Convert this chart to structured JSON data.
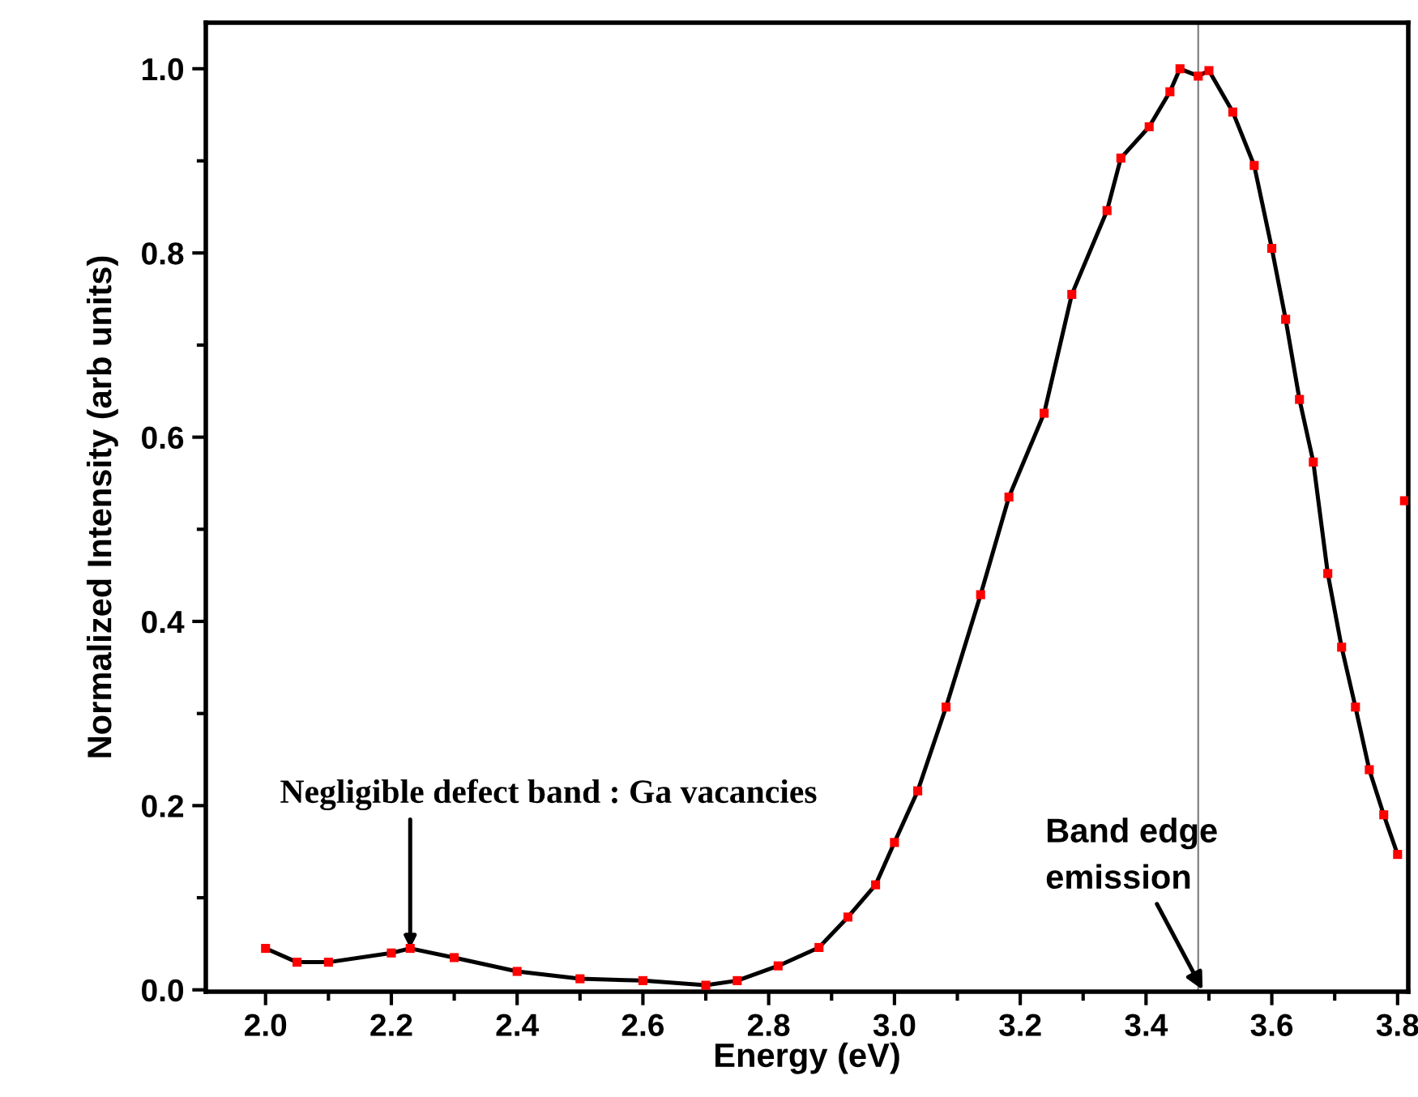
{
  "chart_data": {
    "type": "line",
    "xlabel": "Energy (eV)",
    "ylabel": "Normalized Intensity (arb units)",
    "xlim": [
      1.905,
      3.817
    ],
    "ylim": [
      -0.002,
      1.05
    ],
    "xticks": [
      {
        "value": 2.0,
        "label": "2.0"
      },
      {
        "value": 2.1,
        "label": null
      },
      {
        "value": 2.2,
        "label": "2.2"
      },
      {
        "value": 2.3,
        "label": null
      },
      {
        "value": 2.4,
        "label": "2.4"
      },
      {
        "value": 2.5,
        "label": null
      },
      {
        "value": 2.6,
        "label": "2.6"
      },
      {
        "value": 2.7,
        "label": null
      },
      {
        "value": 2.8,
        "label": "2.8"
      },
      {
        "value": 2.9,
        "label": null
      },
      {
        "value": 3.0,
        "label": "3.0"
      },
      {
        "value": 3.1,
        "label": null
      },
      {
        "value": 3.2,
        "label": "3.2"
      },
      {
        "value": 3.3,
        "label": null
      },
      {
        "value": 3.4,
        "label": "3.4"
      },
      {
        "value": 3.5,
        "label": null
      },
      {
        "value": 3.6,
        "label": "3.6"
      },
      {
        "value": 3.7,
        "label": null
      },
      {
        "value": 3.8,
        "label": "3.8"
      }
    ],
    "yticks": [
      {
        "value": 0.0,
        "label": "0.0"
      },
      {
        "value": 0.1,
        "label": null
      },
      {
        "value": 0.2,
        "label": "0.2"
      },
      {
        "value": 0.3,
        "label": null
      },
      {
        "value": 0.4,
        "label": "0.4"
      },
      {
        "value": 0.5,
        "label": null
      },
      {
        "value": 0.6,
        "label": "0.6"
      },
      {
        "value": 0.7,
        "label": null
      },
      {
        "value": 0.8,
        "label": "0.8"
      },
      {
        "value": 0.9,
        "label": null
      },
      {
        "value": 1.0,
        "label": "1.0"
      }
    ],
    "grid": false,
    "series": [
      {
        "color": "#000000",
        "marker": "none",
        "x": [
          2.0,
          2.05,
          2.1,
          2.2,
          2.23,
          2.3,
          2.4,
          2.5,
          2.6,
          2.7,
          2.75,
          2.815,
          2.88,
          2.926,
          2.97,
          3.0,
          3.037,
          3.082,
          3.137,
          3.182,
          3.238,
          3.282,
          3.338,
          3.36,
          3.405,
          3.438,
          3.454,
          3.483,
          3.5,
          3.538,
          3.572,
          3.6,
          3.622,
          3.644,
          3.666,
          3.689,
          3.711,
          3.733,
          3.755,
          3.778,
          3.8
        ],
        "values": [
          0.045,
          0.03,
          0.03,
          0.04,
          0.045,
          0.035,
          0.02,
          0.012,
          0.01,
          0.005,
          0.01,
          0.026,
          0.046,
          0.079,
          0.114,
          0.16,
          0.216,
          0.307,
          0.429,
          0.535,
          0.626,
          0.755,
          0.846,
          0.903,
          0.937,
          0.975,
          1.0,
          0.992,
          0.998,
          0.953,
          0.895,
          0.805,
          0.728,
          0.641,
          0.573,
          0.452,
          0.372,
          0.307,
          0.239,
          0.19,
          0.147
        ]
      },
      {
        "type": "scatter",
        "color": "#ff0000",
        "marker": "square",
        "x": [
          2.0,
          2.05,
          2.1,
          2.2,
          2.23,
          2.3,
          2.4,
          2.5,
          2.6,
          2.7,
          2.75,
          2.815,
          2.88,
          2.926,
          2.97,
          3.0,
          3.037,
          3.082,
          3.137,
          3.182,
          3.238,
          3.282,
          3.338,
          3.36,
          3.405,
          3.438,
          3.454,
          3.483,
          3.5,
          3.538,
          3.572,
          3.6,
          3.622,
          3.644,
          3.666,
          3.689,
          3.711,
          3.733,
          3.755,
          3.778,
          3.8,
          3.811
        ],
        "values": [
          0.045,
          0.03,
          0.03,
          0.04,
          0.045,
          0.035,
          0.02,
          0.012,
          0.01,
          0.005,
          0.01,
          0.026,
          0.046,
          0.079,
          0.114,
          0.16,
          0.216,
          0.307,
          0.429,
          0.535,
          0.626,
          0.755,
          0.846,
          0.903,
          0.937,
          0.975,
          1.0,
          0.992,
          0.998,
          0.953,
          0.895,
          0.805,
          0.728,
          0.641,
          0.573,
          0.452,
          0.372,
          0.307,
          0.239,
          0.19,
          0.147,
          0.531
        ]
      }
    ],
    "ref_lines": [
      {
        "axis": "x",
        "value": 3.483,
        "color": "#808080"
      }
    ],
    "annotations": [
      {
        "text": "Negligible defect band : Ga vacancies",
        "x": 2.23,
        "y": 0.045
      },
      {
        "text": "Band edge\nemission",
        "x": 3.49,
        "y": 0.0
      }
    ]
  }
}
